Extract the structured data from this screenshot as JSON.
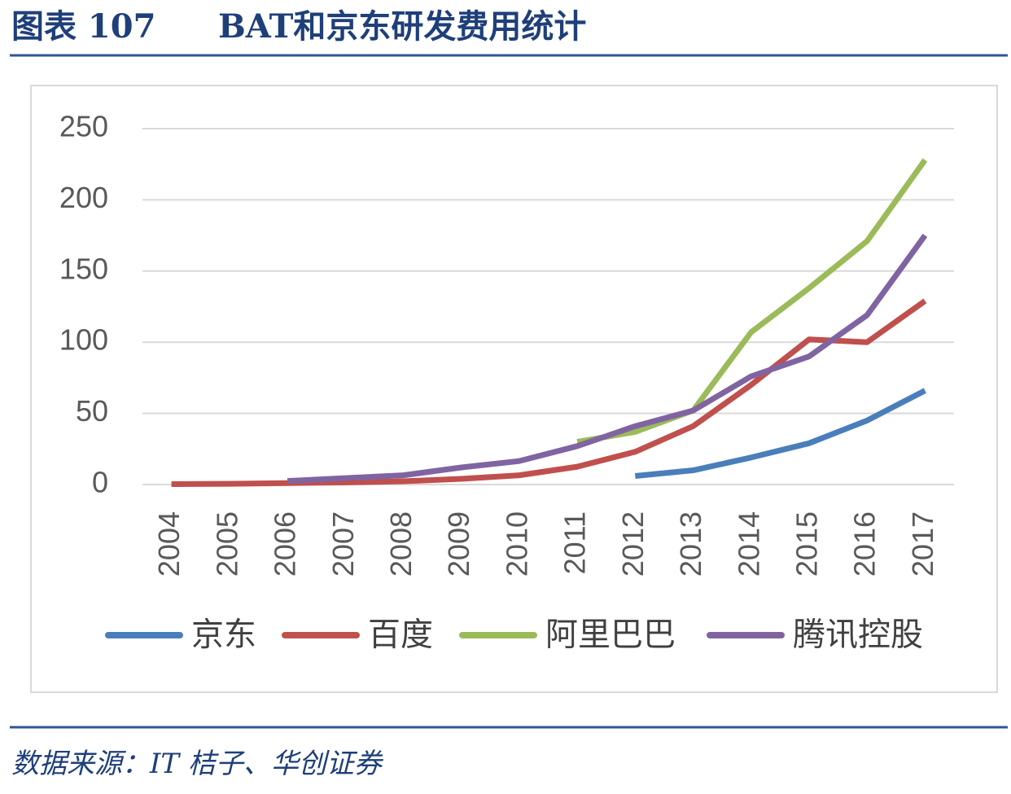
{
  "header": {
    "label": "图表 107",
    "title": "BAT和京东研发费用统计"
  },
  "chart_data": {
    "type": "line",
    "categories": [
      "2004",
      "2005",
      "2006",
      "2007",
      "2008",
      "2009",
      "2010",
      "2011",
      "2012",
      "2013",
      "2014",
      "2015",
      "2016",
      "2017"
    ],
    "series": [
      {
        "name": "京东",
        "color": "#4a7ebb",
        "values": [
          null,
          null,
          null,
          null,
          null,
          null,
          null,
          null,
          6,
          10,
          19,
          29,
          45,
          66
        ]
      },
      {
        "name": "百度",
        "color": "#c0504d",
        "values": [
          0.3,
          0.5,
          1,
          1.5,
          2.3,
          4,
          6.5,
          12.5,
          23,
          41,
          70,
          102,
          100,
          129
        ]
      },
      {
        "name": "阿里巴巴",
        "color": "#9bbb59",
        "values": [
          null,
          null,
          null,
          null,
          null,
          null,
          null,
          30,
          37,
          52,
          107,
          138,
          171,
          228
        ]
      },
      {
        "name": "腾讯控股",
        "color": "#8064a2",
        "values": [
          null,
          null,
          2.5,
          4.5,
          6.5,
          12,
          16.5,
          27,
          41,
          52,
          76,
          90,
          119,
          175
        ]
      }
    ],
    "ylim": [
      0,
      250
    ],
    "yticks": [
      0,
      50,
      100,
      150,
      200,
      250
    ],
    "grid": true,
    "legend": "bottom"
  },
  "footer": {
    "source": "数据来源：IT 桔子、华创证券"
  }
}
